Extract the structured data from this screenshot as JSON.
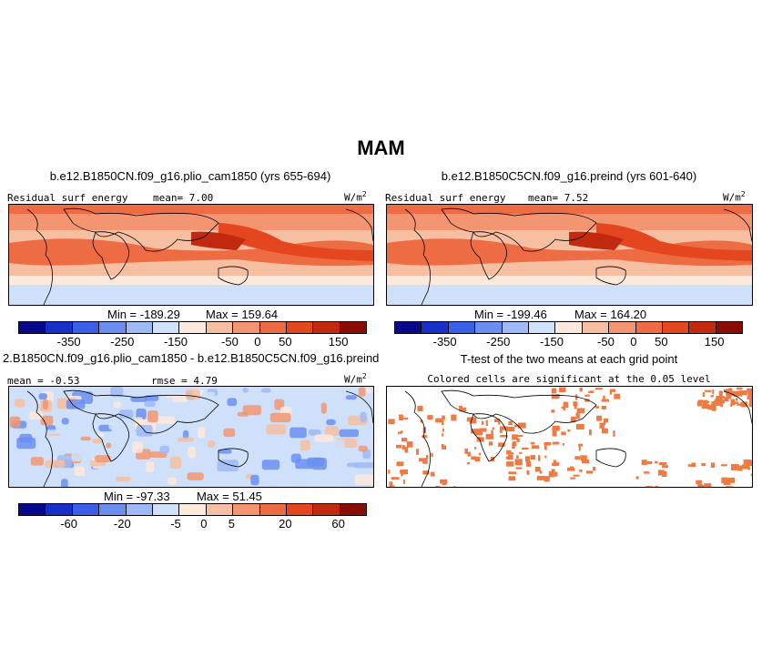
{
  "title": "MAM",
  "colors": {
    "palette": [
      "#08088a",
      "#1730c8",
      "#3a5fe6",
      "#6b8ff0",
      "#9fbaf6",
      "#cfe0fb",
      "#fde8dc",
      "#f6bfa2",
      "#f29570",
      "#ee6c44",
      "#e4461f",
      "#c22a10",
      "#8b0c04"
    ],
    "significant": "#ee7a44"
  },
  "chart_data": [
    {
      "type": "heatmap",
      "panel": "top-left",
      "title": "b.e12.B1850CN.f09_g16.plio_cam1850 (yrs 655-694)",
      "left_label": "Residual surf energy",
      "mean_label": "mean=",
      "mean_value": "7.00",
      "units": "W/m",
      "units_exp": "2",
      "min_label": "Min = -189.29",
      "max_label": "Max = 159.64",
      "stats": {
        "min": -189.29,
        "max": 159.64,
        "mean": 7.0
      },
      "colorbar_ticks": [
        "-350",
        "-250",
        "-150",
        "-50",
        "0",
        "50",
        "150"
      ]
    },
    {
      "type": "heatmap",
      "panel": "top-right",
      "title": "b.e12.B1850C5CN.f09_g16.preind (yrs 601-640)",
      "left_label": "Residual surf energy",
      "mean_label": "mean=",
      "mean_value": "7.52",
      "units": "W/m",
      "units_exp": "2",
      "min_label": "Min = -199.46",
      "max_label": "Max = 164.20",
      "stats": {
        "min": -199.46,
        "max": 164.2,
        "mean": 7.52
      },
      "colorbar_ticks": [
        "-350",
        "-250",
        "-150",
        "-50",
        "0",
        "50",
        "150"
      ]
    },
    {
      "type": "heatmap",
      "panel": "bottom-left",
      "title": "2.B1850CN.f09_g16.plio_cam1850 - b.e12.B1850C5CN.f09_g16.preind",
      "mean_label": "mean =",
      "mean_value": "-0.53",
      "rmse_label": "rmse =",
      "rmse_value": "4.79",
      "units": "W/m",
      "units_exp": "2",
      "min_label": "Min = -97.33",
      "max_label": "Max = 51.45",
      "stats": {
        "min": -97.33,
        "max": 51.45,
        "mean": -0.53,
        "rmse": 4.79
      },
      "colorbar_ticks": [
        "-60",
        "-20",
        "-5",
        "0",
        "5",
        "20",
        "60"
      ]
    },
    {
      "type": "heatmap",
      "panel": "bottom-right",
      "title": "T-test of the two means at each grid point",
      "subtitle": "Colored cells are significant at the 0.05 level"
    }
  ]
}
